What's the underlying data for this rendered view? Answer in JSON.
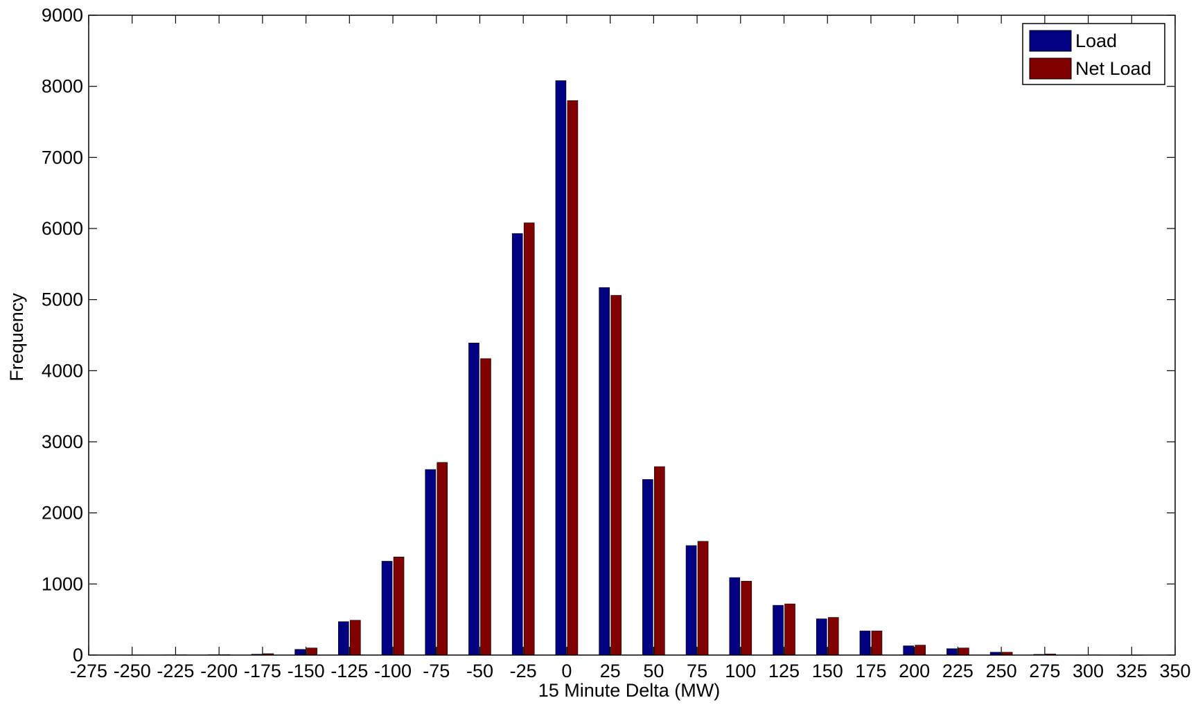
{
  "chart_data": {
    "type": "bar",
    "xlabel": "15 Minute Delta (MW)",
    "ylabel": "Frequency",
    "ylim": [
      0,
      9000
    ],
    "xlim": [
      -275,
      350
    ],
    "yticks": [
      0,
      1000,
      2000,
      3000,
      4000,
      5000,
      6000,
      7000,
      8000,
      9000
    ],
    "xticks": [
      -275,
      -250,
      -225,
      -200,
      -175,
      -150,
      -125,
      -100,
      -75,
      -50,
      -25,
      0,
      25,
      50,
      75,
      100,
      125,
      150,
      175,
      200,
      225,
      250,
      275,
      300,
      325,
      350
    ],
    "categories": [
      -250,
      -225,
      -200,
      -175,
      -150,
      -125,
      -100,
      -75,
      -50,
      -25,
      0,
      25,
      50,
      75,
      100,
      125,
      150,
      175,
      200,
      225,
      250,
      275,
      300,
      325
    ],
    "series": [
      {
        "name": "Load",
        "color": "#000080",
        "values": [
          2,
          3,
          5,
          12,
          80,
          470,
          1320,
          2610,
          4390,
          5930,
          8080,
          5170,
          2470,
          1540,
          1090,
          700,
          510,
          340,
          130,
          90,
          40,
          10,
          2,
          1
        ]
      },
      {
        "name": "Net Load",
        "color": "#800000",
        "values": [
          2,
          4,
          6,
          20,
          100,
          490,
          1380,
          2710,
          4170,
          6080,
          7800,
          5060,
          2650,
          1600,
          1040,
          720,
          530,
          340,
          140,
          100,
          40,
          15,
          3,
          1
        ]
      }
    ],
    "legend": {
      "position": "top-right",
      "entries": [
        "Load",
        "Net Load"
      ]
    },
    "grid": false
  }
}
